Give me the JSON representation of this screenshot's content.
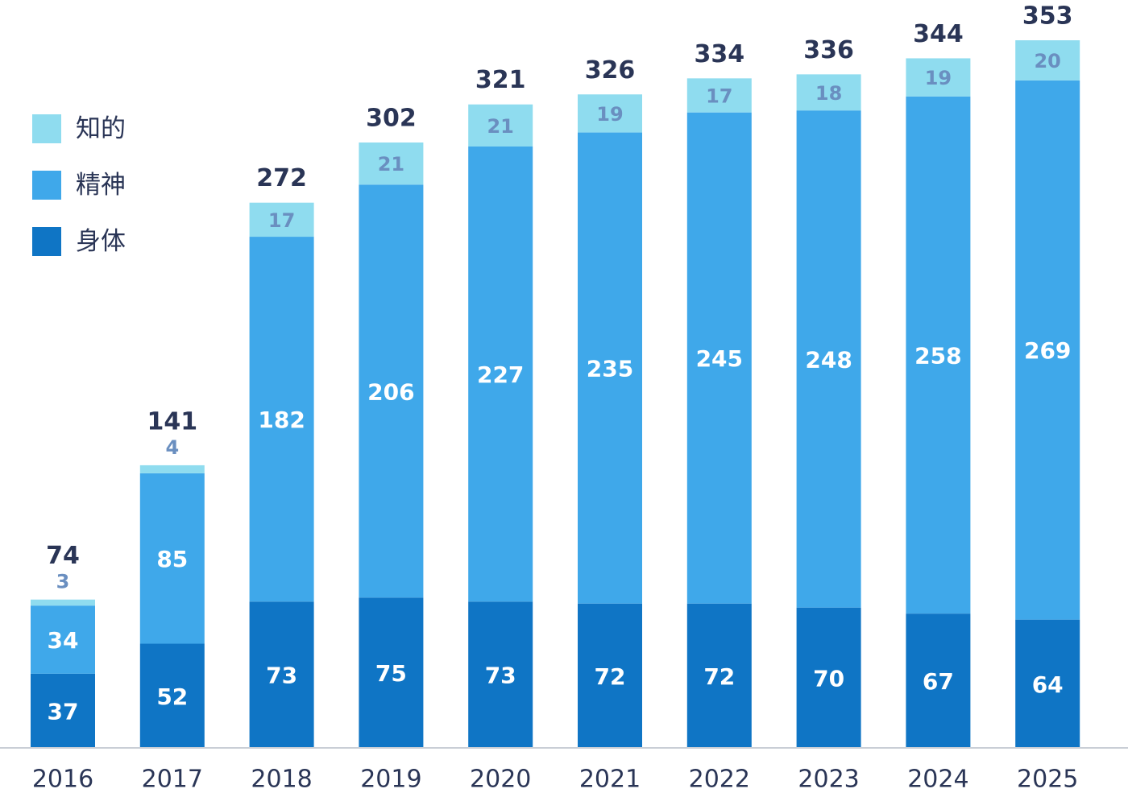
{
  "chart_data": {
    "type": "bar",
    "stacked": true,
    "title": "",
    "xlabel": "",
    "ylabel": "",
    "ylim": [
      0,
      360
    ],
    "grid": false,
    "legend_position": "top-left",
    "categories": [
      "2016",
      "2017",
      "2018",
      "2019",
      "2020",
      "2021",
      "2022",
      "2023",
      "2024",
      "2025"
    ],
    "series": [
      {
        "name": "身体",
        "color": "#0f75c5",
        "values": [
          37,
          52,
          73,
          75,
          73,
          72,
          72,
          70,
          67,
          64
        ]
      },
      {
        "name": "精神",
        "color": "#3fa8ea",
        "values": [
          34,
          85,
          182,
          206,
          227,
          235,
          245,
          248,
          258,
          269
        ]
      },
      {
        "name": "知的",
        "color": "#8fdcef",
        "values": [
          3,
          4,
          17,
          21,
          21,
          19,
          17,
          18,
          19,
          20
        ]
      }
    ],
    "totals": [
      74,
      141,
      272,
      302,
      321,
      326,
      334,
      336,
      344,
      353
    ],
    "legend_order": [
      "知的",
      "精神",
      "身体"
    ],
    "label_colors": {
      "inside": "#ffffff",
      "small": "#6a8fc0",
      "total": "#2a3556"
    }
  }
}
